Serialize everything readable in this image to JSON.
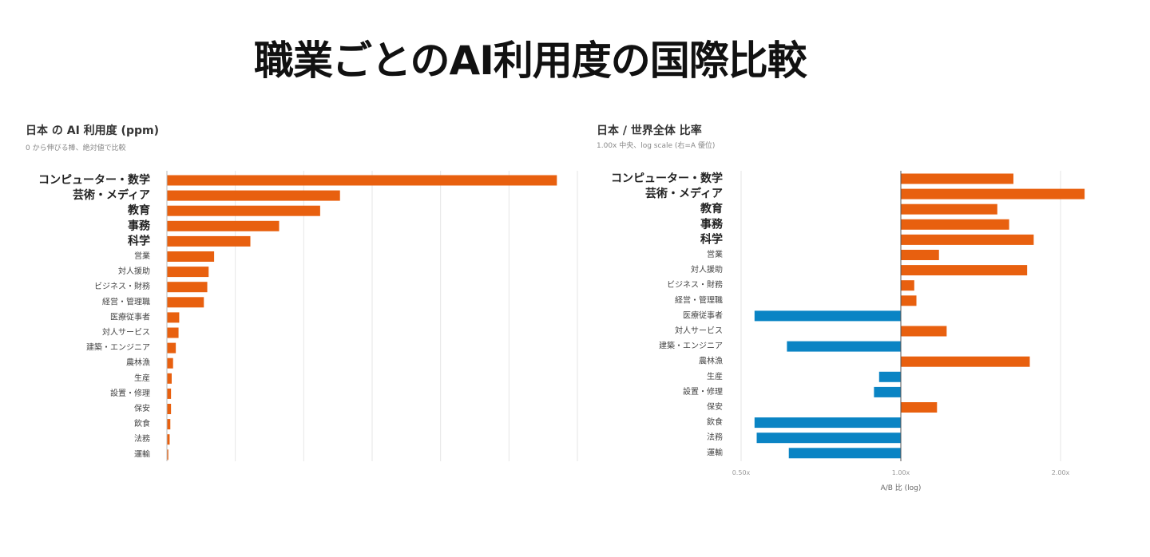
{
  "title": "職業ごとのAI利用度の国際比較",
  "colors": {
    "orange": "#e8600f",
    "blue": "#0a84c4",
    "grid": "#e6e6e6",
    "axis": "#555555"
  },
  "chart_data": [
    {
      "type": "bar",
      "orientation": "horizontal",
      "title": "日本 の AI 利用度 (ppm)",
      "subtitle": "0 から伸びる棒、絶対値で比較",
      "categories": [
        "コンピューター・数学",
        "芸術・メディア",
        "教育",
        "事務",
        "科学",
        "営業",
        "対人援助",
        "ビジネス・財務",
        "経営・管理職",
        "医療従事者",
        "対人サービス",
        "建築・エンジニア",
        "農林漁",
        "生産",
        "設置・修理",
        "保安",
        "飲食",
        "法務",
        "運輸"
      ],
      "emphasized_count": 5,
      "values": [
        570,
        253,
        224,
        164,
        122,
        69,
        61,
        59,
        54,
        18,
        17,
        13,
        9,
        7,
        6,
        6,
        5,
        4,
        2
      ],
      "xlim": [
        0,
        600
      ],
      "grid": true
    },
    {
      "type": "bar",
      "orientation": "horizontal",
      "scale": "log",
      "title": "日本 / 世界全体 比率",
      "subtitle": "1.00x 中央、log scale (右=A 優位)",
      "xlabel": "A/B 比 (log)",
      "xticks": [
        "0.50x",
        "1.00x",
        "2.00x"
      ],
      "xtick_values": [
        0.5,
        1.0,
        2.0
      ],
      "baseline": 1.0,
      "xlim": [
        0.5,
        2.2
      ],
      "categories": [
        "コンピューター・数学",
        "芸術・メディア",
        "教育",
        "事務",
        "科学",
        "営業",
        "対人援助",
        "ビジネス・財務",
        "経営・管理職",
        "医療従事者",
        "対人サービス",
        "建築・エンジニア",
        "農林漁",
        "生産",
        "設置・修理",
        "保安",
        "飲食",
        "法務",
        "運輸"
      ],
      "emphasized_count": 5,
      "values": [
        1.63,
        2.22,
        1.52,
        1.6,
        1.78,
        1.18,
        1.73,
        1.06,
        1.07,
        0.53,
        1.22,
        0.61,
        1.75,
        0.91,
        0.89,
        1.17,
        0.53,
        0.535,
        0.615
      ],
      "grid": true
    }
  ]
}
